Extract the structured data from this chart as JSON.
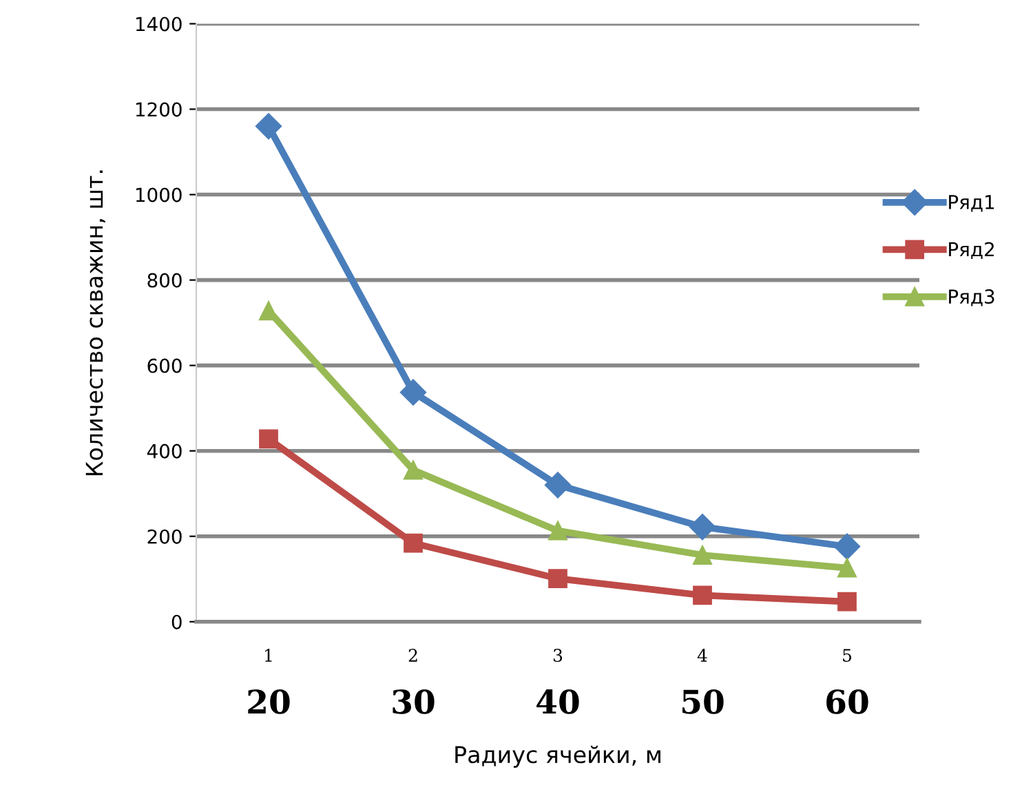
{
  "chart_data": {
    "type": "line",
    "xlabel": "Радиус ячейки, м",
    "ylabel": "Количество скважин, шт.",
    "categories": [
      "1",
      "2",
      "3",
      "4",
      "5"
    ],
    "annotations": [
      "20",
      "30",
      "40",
      "50",
      "60"
    ],
    "ylim": [
      0,
      1400
    ],
    "yticks": [
      0,
      200,
      400,
      600,
      800,
      1000,
      1200,
      1400
    ],
    "grid": "y",
    "legend": "right",
    "line_style": "solid",
    "series": [
      {
        "name": "Ряд1",
        "color": "#4a7ebb",
        "marker": "diamond",
        "values": [
          1160,
          537,
          320,
          222,
          176
        ]
      },
      {
        "name": "Ряд2",
        "color": "#be4b48",
        "marker": "square",
        "values": [
          428,
          184,
          101,
          62,
          47
        ]
      },
      {
        "name": "Ряд3",
        "color": "#98b954",
        "marker": "triangle",
        "values": [
          728,
          355,
          213,
          156,
          126
        ]
      }
    ]
  }
}
